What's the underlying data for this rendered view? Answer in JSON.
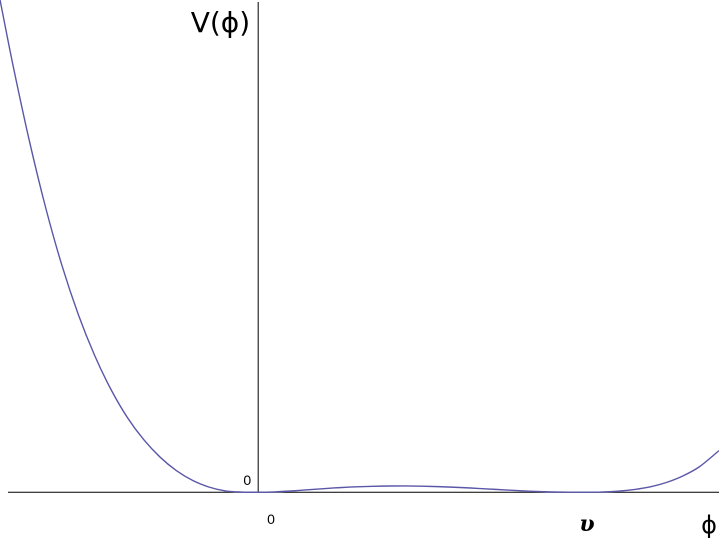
{
  "chart_data": {
    "type": "line",
    "ylabel": "V(ϕ)",
    "xlabel": "ϕ",
    "x_ticks": [
      {
        "value": 0,
        "label": "0"
      },
      {
        "value": 1,
        "label": "υ"
      }
    ],
    "y_ticks": [
      {
        "value": 0,
        "label": "0"
      }
    ],
    "xlim": [
      -0.79,
      1.41
    ],
    "ylim": [
      -0.04,
      1.43
    ],
    "grid": false,
    "series": [
      {
        "color": "#5a57a8",
        "x": [
          -0.79,
          -0.75,
          -0.7,
          -0.65,
          -0.6,
          -0.55,
          -0.5,
          -0.45,
          -0.4,
          -0.35,
          -0.3,
          -0.25,
          -0.2,
          -0.15,
          -0.1,
          -0.05,
          0,
          0.05,
          0.1,
          0.15,
          0.2,
          0.25,
          0.3,
          0.35,
          0.4,
          0.45,
          0.5,
          0.55,
          0.6,
          0.65,
          0.7,
          0.75,
          0.8,
          0.85,
          0.9,
          0.95,
          1,
          1.05,
          1.1,
          1.15,
          1.2,
          1.25,
          1.3,
          1.35,
          1.41
        ],
        "y": [
          1.4308,
          1.2393,
          1.0202,
          0.8257,
          0.6573,
          0.5153,
          0.3965,
          0.2977,
          0.2167,
          0.1525,
          0.1018,
          0.0625,
          0.0339,
          0.0148,
          0.0037,
          0.0004,
          0,
          0.001,
          0.0036,
          0.0071,
          0.0104,
          0.0134,
          0.0157,
          0.0173,
          0.0181,
          0.0182,
          0.0176,
          0.0163,
          0.0145,
          0.0123,
          0.0097,
          0.007,
          0.0044,
          0.0022,
          0.0007,
          0.0001,
          0,
          0.0006,
          0.003,
          0.0078,
          0.0157,
          0.0286,
          0.0475,
          0.074,
          0.1208
        ]
      }
    ]
  },
  "axes": {
    "color": "#000000"
  }
}
